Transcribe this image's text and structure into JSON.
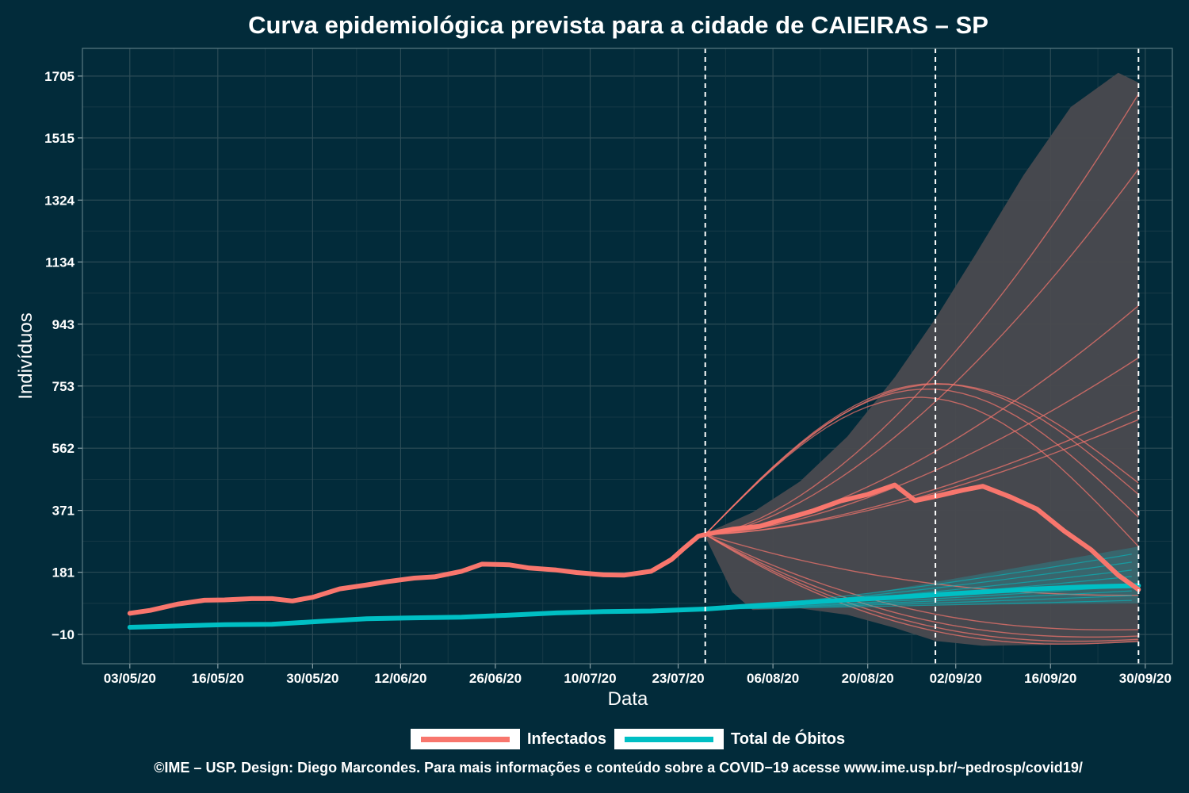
{
  "title": "Curva epidemiológica prevista para a cidade de CAIEIRAS – SP",
  "footer": "©IME – USP. Design: Diego Marcondes. Para mais informações e conteúdo sobre a COVID−19 acesse www.ime.usp.br/~pedrosp/covid19/",
  "legend": {
    "infected_label": "Infectados",
    "deaths_label": "Total de Óbitos"
  },
  "colors": {
    "background": "#022b3a",
    "infected": "#f8766d",
    "deaths": "#00bfc4",
    "band": "#4a4a4f"
  },
  "chart_data": {
    "type": "line",
    "xlabel": "Data",
    "ylabel": "Indivíduos",
    "x_ticks": [
      "03/05/20",
      "16/05/20",
      "30/05/20",
      "12/06/20",
      "26/06/20",
      "10/07/20",
      "23/07/20",
      "06/08/20",
      "20/08/20",
      "02/09/20",
      "16/09/20",
      "30/09/20"
    ],
    "y_ticks": [
      "−10",
      "181",
      "371",
      "562",
      "753",
      "943",
      "1134",
      "1324",
      "1515",
      "1705"
    ],
    "ylim": [
      -100,
      1790
    ],
    "xlim": [
      "2020-04-26",
      "2020-10-04"
    ],
    "grid": true,
    "legend_position": "bottom",
    "vlines": [
      "2020-07-27",
      "2020-08-30",
      "2020-09-29"
    ],
    "series": [
      {
        "name": "Infectados",
        "color": "#f8766d",
        "points": [
          [
            "2020-05-03",
            55
          ],
          [
            "2020-05-06",
            64
          ],
          [
            "2020-05-10",
            83
          ],
          [
            "2020-05-14",
            95
          ],
          [
            "2020-05-17",
            96
          ],
          [
            "2020-05-21",
            100
          ],
          [
            "2020-05-24",
            100
          ],
          [
            "2020-05-27",
            93
          ],
          [
            "2020-05-30",
            104
          ],
          [
            "2020-06-03",
            130
          ],
          [
            "2020-06-07",
            142
          ],
          [
            "2020-06-10",
            152
          ],
          [
            "2020-06-14",
            163
          ],
          [
            "2020-06-17",
            167
          ],
          [
            "2020-06-21",
            184
          ],
          [
            "2020-06-24",
            206
          ],
          [
            "2020-06-28",
            204
          ],
          [
            "2020-07-01",
            194
          ],
          [
            "2020-07-05",
            188
          ],
          [
            "2020-07-08",
            180
          ],
          [
            "2020-07-12",
            173
          ],
          [
            "2020-07-15",
            172
          ],
          [
            "2020-07-19",
            184
          ],
          [
            "2020-07-22",
            220
          ],
          [
            "2020-07-24",
            257
          ],
          [
            "2020-07-26",
            292
          ],
          [
            "2020-07-27",
            297
          ],
          [
            "2020-07-31",
            313
          ],
          [
            "2020-08-04",
            322
          ],
          [
            "2020-08-08",
            346
          ],
          [
            "2020-08-12",
            370
          ],
          [
            "2020-08-16",
            400
          ],
          [
            "2020-08-20",
            420
          ],
          [
            "2020-08-24",
            449
          ],
          [
            "2020-08-27",
            401
          ],
          [
            "2020-08-30",
            414
          ],
          [
            "2020-09-03",
            433
          ],
          [
            "2020-09-06",
            445
          ],
          [
            "2020-09-10",
            413
          ],
          [
            "2020-09-14",
            375
          ],
          [
            "2020-09-18",
            308
          ],
          [
            "2020-09-22",
            250
          ],
          [
            "2020-09-26",
            172
          ],
          [
            "2020-09-29",
            128
          ]
        ]
      },
      {
        "name": "Total de Óbitos",
        "color": "#00bfc4",
        "points": [
          [
            "2020-05-03",
            12
          ],
          [
            "2020-05-10",
            16
          ],
          [
            "2020-05-17",
            20
          ],
          [
            "2020-05-24",
            21
          ],
          [
            "2020-05-31",
            30
          ],
          [
            "2020-06-07",
            38
          ],
          [
            "2020-06-14",
            41
          ],
          [
            "2020-06-21",
            43
          ],
          [
            "2020-06-28",
            49
          ],
          [
            "2020-07-05",
            56
          ],
          [
            "2020-07-12",
            60
          ],
          [
            "2020-07-19",
            62
          ],
          [
            "2020-07-27",
            68
          ],
          [
            "2020-08-03",
            78
          ],
          [
            "2020-08-10",
            87
          ],
          [
            "2020-08-17",
            96
          ],
          [
            "2020-08-24",
            104
          ],
          [
            "2020-08-31",
            113
          ],
          [
            "2020-09-07",
            122
          ],
          [
            "2020-09-14",
            130
          ],
          [
            "2020-09-21",
            136
          ],
          [
            "2020-09-29",
            140
          ]
        ]
      }
    ],
    "infected_projection_band": {
      "upper": [
        [
          "2020-07-27",
          300
        ],
        [
          "2020-08-03",
          365
        ],
        [
          "2020-08-10",
          460
        ],
        [
          "2020-08-17",
          598
        ],
        [
          "2020-08-24",
          780
        ],
        [
          "2020-08-30",
          960
        ],
        [
          "2020-09-05",
          1160
        ],
        [
          "2020-09-12",
          1400
        ],
        [
          "2020-09-19",
          1610
        ],
        [
          "2020-09-26",
          1715
        ],
        [
          "2020-09-29",
          1685
        ]
      ],
      "lower": [
        [
          "2020-07-27",
          290
        ],
        [
          "2020-07-31",
          120
        ],
        [
          "2020-08-03",
          65
        ],
        [
          "2020-08-10",
          70
        ],
        [
          "2020-08-17",
          50
        ],
        [
          "2020-08-24",
          10
        ],
        [
          "2020-08-30",
          -30
        ],
        [
          "2020-09-06",
          -45
        ],
        [
          "2020-09-15",
          -42
        ],
        [
          "2020-09-22",
          -38
        ],
        [
          "2020-09-29",
          -35
        ]
      ]
    },
    "infected_scenario_endpoints": [
      1650,
      1420,
      1000,
      840,
      680,
      650,
      455,
      420,
      350,
      260,
      110,
      5,
      -15,
      -25,
      -30
    ],
    "deaths_projection_band": {
      "upper_end": 260,
      "lower_end": 85
    }
  }
}
